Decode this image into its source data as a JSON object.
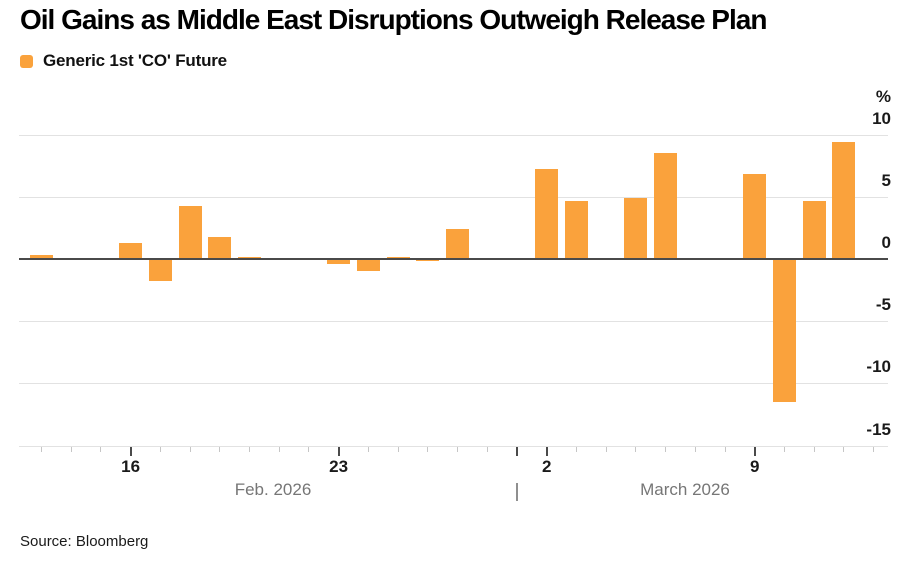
{
  "header": {
    "title": "Oil Gains as Middle East Disruptions Outweigh Release Plan",
    "legend": {
      "label": "Generic 1st 'CO' Future"
    }
  },
  "footer": {
    "source": "Source: Bloomberg"
  },
  "colors": {
    "bar": "#FAA23C",
    "gridline": "#E2E2E2",
    "zero_line": "#4A4A4A",
    "tick_minor": "#C6C6C6",
    "tick_major": "#4A4A4A",
    "axis_text": "#1A1A1A",
    "month_text": "#767676"
  },
  "chart_data": {
    "type": "bar",
    "title": "Oil Gains as Middle East Disruptions Outweigh Release Plan",
    "series_name": "Generic 1st 'CO' Future",
    "unit": "%",
    "ylabel": "%",
    "ylim": [
      -15,
      10
    ],
    "yticks": [
      10,
      5,
      0,
      -5,
      -10,
      -15
    ],
    "grid": "horizontal",
    "legend_position": "top-left",
    "x_axis": {
      "day_tick_start": "2026-02-13",
      "day_tick_end": "2026-03-13",
      "major_ticks": [
        {
          "date": "2026-02-16",
          "label": "16"
        },
        {
          "date": "2026-02-23",
          "label": "23"
        },
        {
          "date": "2026-03-01",
          "label": ""
        },
        {
          "date": "2026-03-02",
          "label": "2"
        },
        {
          "date": "2026-03-09",
          "label": "9"
        }
      ],
      "month_labels": [
        "Feb. 2026",
        "|",
        "March 2026"
      ]
    },
    "points": [
      {
        "date": "2026-02-13",
        "value": 0.3
      },
      {
        "date": "2026-02-16",
        "value": 1.3
      },
      {
        "date": "2026-02-17",
        "value": -1.8
      },
      {
        "date": "2026-02-18",
        "value": 4.3
      },
      {
        "date": "2026-02-19",
        "value": 1.8
      },
      {
        "date": "2026-02-20",
        "value": 0.2
      },
      {
        "date": "2026-02-23",
        "value": -0.4
      },
      {
        "date": "2026-02-24",
        "value": -1.0
      },
      {
        "date": "2026-02-25",
        "value": 0.15
      },
      {
        "date": "2026-02-26",
        "value": -0.2
      },
      {
        "date": "2026-02-27",
        "value": 2.4
      },
      {
        "date": "2026-03-02",
        "value": 7.2
      },
      {
        "date": "2026-03-03",
        "value": 4.7
      },
      {
        "date": "2026-03-04",
        "value": 0.05
      },
      {
        "date": "2026-03-05",
        "value": 4.9
      },
      {
        "date": "2026-03-06",
        "value": 8.5
      },
      {
        "date": "2026-03-09",
        "value": 6.8
      },
      {
        "date": "2026-03-10",
        "value": -11.5
      },
      {
        "date": "2026-03-11",
        "value": 4.7
      },
      {
        "date": "2026-03-12",
        "value": 9.4
      }
    ]
  }
}
